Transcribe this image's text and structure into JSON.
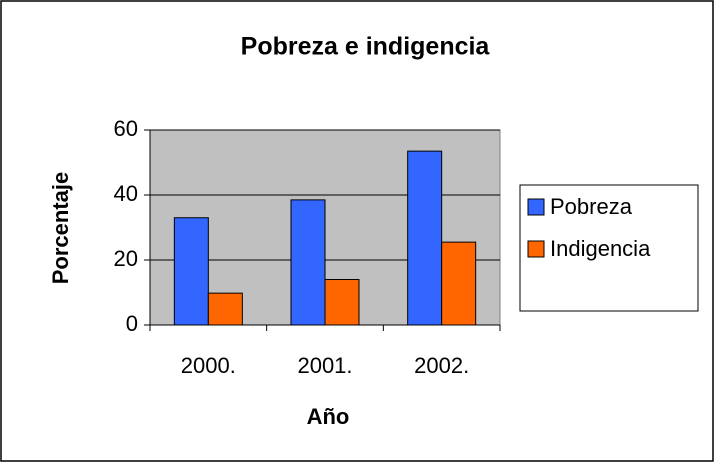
{
  "chart_data": {
    "type": "bar",
    "title": "Pobreza e indigencia",
    "x_label": "Año",
    "y_label": "Porcentaje",
    "categories": [
      "2000.",
      "2001.",
      "2002."
    ],
    "series": [
      {
        "name": "Pobreza",
        "color": "#3366ff",
        "values": [
          33,
          38.5,
          53.5
        ]
      },
      {
        "name": "Indigencia",
        "color": "#ff6600",
        "values": [
          9.8,
          14,
          25.5
        ]
      }
    ],
    "ylim": [
      0,
      60
    ],
    "yticks": [
      0,
      20,
      40,
      60
    ],
    "grid": true,
    "legend": "right"
  }
}
